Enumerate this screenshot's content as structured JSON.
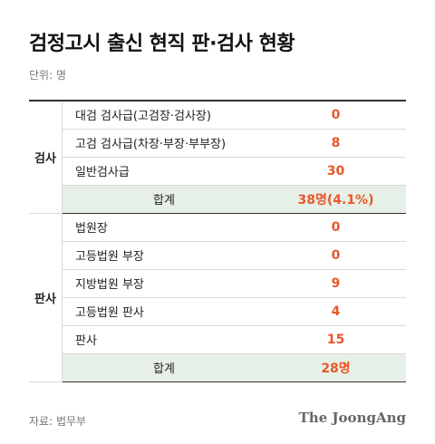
{
  "title": "검정고시 출신 현직 판·검사 현황",
  "unit": "단위: 명",
  "groups": [
    {
      "name": "검사",
      "rows": [
        {
          "label": "대검 검사급(고검장·검사장)",
          "value": "0"
        },
        {
          "label": "고검 검사급(차장·부장·부부장)",
          "value": "8"
        },
        {
          "label": "일반검사급",
          "value": "30"
        }
      ],
      "subtotal": {
        "label": "합계",
        "value": "38명(4.1%)"
      }
    },
    {
      "name": "판사",
      "rows": [
        {
          "label": "법원장",
          "value": "0"
        },
        {
          "label": "고등법원 부장",
          "value": "0"
        },
        {
          "label": "지방법원 부장",
          "value": "9"
        },
        {
          "label": "고등법원 판사",
          "value": "4"
        },
        {
          "label": "판사",
          "value": "15"
        }
      ],
      "subtotal": {
        "label": "합계",
        "value": "28명"
      }
    }
  ],
  "source": "자료: 법무부",
  "brand": "The JoongAng",
  "colors": {
    "value": "#e8572b",
    "subtotal_bg": "#e6f0e6"
  }
}
